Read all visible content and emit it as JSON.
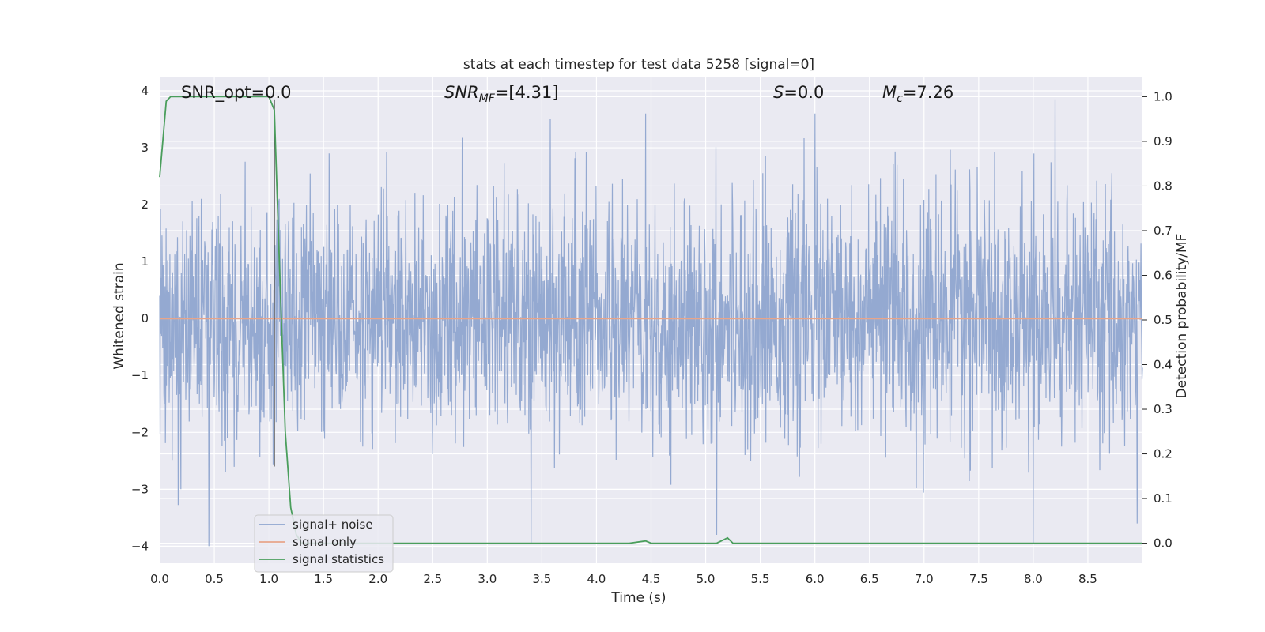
{
  "chart_data": {
    "type": "line",
    "title": "stats at each timestep for test data 5258 [signal=0]",
    "xlabel": "Time (s)",
    "ylabel_left": "Whitened strain",
    "ylabel_right": "Detection probability/MF",
    "xlim": [
      0.0,
      9.0
    ],
    "ylim_left": [
      -4.3,
      4.25
    ],
    "ylim_right": [
      -0.045,
      1.045
    ],
    "x_ticks": [
      "0.0",
      "0.5",
      "1.0",
      "1.5",
      "2.0",
      "2.5",
      "3.0",
      "3.5",
      "4.0",
      "4.5",
      "5.0",
      "5.5",
      "6.0",
      "6.5",
      "7.0",
      "7.5",
      "8.0",
      "8.5"
    ],
    "y_left_ticks": [
      "4",
      "3",
      "2",
      "1",
      "0",
      "−1",
      "−2",
      "−3",
      "−4"
    ],
    "y_right_ticks": [
      "1.0",
      "0.9",
      "0.8",
      "0.7",
      "0.6",
      "0.5",
      "0.4",
      "0.3",
      "0.2",
      "0.1",
      "0.0"
    ],
    "grid": true,
    "legend_position": "lower-left",
    "annotations": {
      "snr_opt": "SNR_opt=0.0",
      "snr_mf": "SNR",
      "snr_mf_sub": "MF",
      "snr_mf_value": "=[4.31]",
      "s_label": "S",
      "s_value": "=0.0",
      "mc_label": "M",
      "mc_sub": "c",
      "mc_value": "=7.26"
    },
    "vertical_marker_x": 1.05,
    "series": [
      {
        "name": "signal+ noise",
        "color": "#8fa5cf",
        "axis": "left",
        "description_range": [
          -4.0,
          3.9
        ],
        "peaks": [
          [
            0.45,
            -4.0
          ],
          [
            1.55,
            2.9
          ],
          [
            3.4,
            -3.95
          ],
          [
            4.45,
            3.6
          ],
          [
            5.1,
            -3.8
          ],
          [
            6.0,
            3.6
          ],
          [
            8.0,
            -3.95
          ],
          [
            8.2,
            3.85
          ],
          [
            8.95,
            -3.6
          ]
        ]
      },
      {
        "name": "signal only",
        "color": "#e8a58a",
        "axis": "left",
        "x": [
          0.0,
          9.0
        ],
        "y": [
          0.0,
          0.0
        ]
      },
      {
        "name": "signal statistics",
        "color": "#4a9e5c",
        "axis": "right",
        "x": [
          0.0,
          0.06,
          0.1,
          0.15,
          0.5,
          1.0,
          1.05,
          1.1,
          1.15,
          1.2,
          1.25,
          1.3,
          1.35,
          2.0,
          4.3,
          4.45,
          4.5,
          5.1,
          5.2,
          5.25,
          9.0
        ],
        "y": [
          0.82,
          0.99,
          1.0,
          1.0,
          1.0,
          1.0,
          0.97,
          0.6,
          0.25,
          0.08,
          0.02,
          0.0,
          0.0,
          0.0,
          0.0,
          0.005,
          0.0,
          0.0,
          0.012,
          0.0,
          0.0
        ]
      }
    ]
  }
}
